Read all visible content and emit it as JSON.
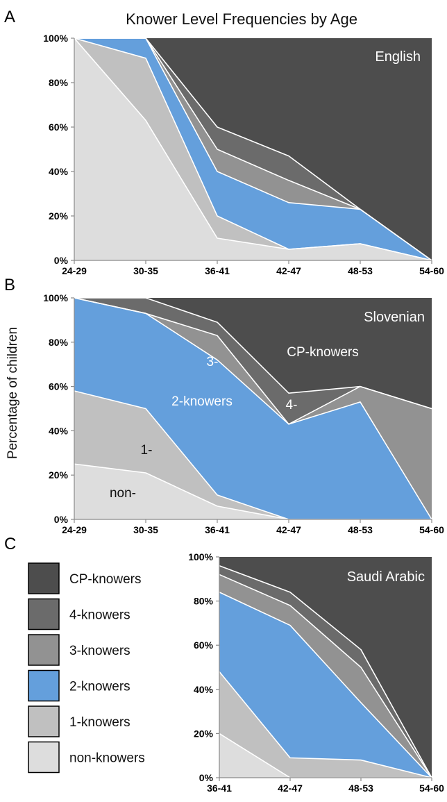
{
  "figure": {
    "title": "Knower Level Frequencies by Age",
    "ylabel": "Percentage of children",
    "colors": {
      "non": "#dddddd",
      "one": "#c0c0c0",
      "two": "#649fdc",
      "three": "#929292",
      "four": "#6b6b6b",
      "cp": "#4d4d4d"
    }
  },
  "legend": {
    "items": [
      {
        "key": "cp",
        "label": "CP-knowers"
      },
      {
        "key": "four",
        "label": "4-knowers"
      },
      {
        "key": "three",
        "label": "3-knowers"
      },
      {
        "key": "two",
        "label": "2-knowers"
      },
      {
        "key": "one",
        "label": "1-knowers"
      },
      {
        "key": "non",
        "label": "non-knowers"
      }
    ]
  },
  "chart_data": [
    {
      "type": "area",
      "stacked": true,
      "panel": "A",
      "title": "Knower Level Frequencies by Age",
      "language": "English",
      "categories": [
        "24-29",
        "30-35",
        "36-41",
        "42-47",
        "48-53",
        "54-60"
      ],
      "ylim": [
        0,
        100
      ],
      "yticks": [
        "0%",
        "20%",
        "40%",
        "60%",
        "80%",
        "100%"
      ],
      "series": [
        {
          "key": "non",
          "values": [
            100,
            63,
            10,
            5,
            7.5,
            0
          ]
        },
        {
          "key": "one",
          "values": [
            0,
            28,
            10,
            0,
            0,
            0
          ]
        },
        {
          "key": "two",
          "values": [
            0,
            9,
            20,
            21,
            15.5,
            0
          ]
        },
        {
          "key": "three",
          "values": [
            0,
            0,
            10,
            10,
            0,
            0
          ]
        },
        {
          "key": "four",
          "values": [
            0,
            0,
            10,
            11,
            0,
            0
          ]
        },
        {
          "key": "cp",
          "values": [
            0,
            0,
            40,
            53,
            77,
            100
          ]
        }
      ]
    },
    {
      "type": "area",
      "stacked": true,
      "panel": "B",
      "language": "Slovenian",
      "categories": [
        "24-29",
        "30-35",
        "36-41",
        "42-47",
        "48-53",
        "54-60"
      ],
      "ylim": [
        0,
        100
      ],
      "yticks": [
        "0%",
        "20%",
        "40%",
        "60%",
        "80%",
        "100%"
      ],
      "annotations": [
        "CP-knowers",
        "2-knowers",
        "3-",
        "4-",
        "1-",
        "non-"
      ],
      "series": [
        {
          "key": "non",
          "values": [
            25,
            21,
            6,
            0,
            0,
            0
          ]
        },
        {
          "key": "one",
          "values": [
            33,
            29,
            5,
            0,
            0,
            0
          ]
        },
        {
          "key": "two",
          "values": [
            42,
            43,
            61,
            43,
            53,
            0
          ]
        },
        {
          "key": "three",
          "values": [
            0,
            0,
            11,
            0,
            7,
            50
          ]
        },
        {
          "key": "four",
          "values": [
            0,
            7,
            6,
            14,
            0,
            0
          ]
        },
        {
          "key": "cp",
          "values": [
            0,
            0,
            11,
            43,
            40,
            50
          ]
        }
      ]
    },
    {
      "type": "area",
      "stacked": true,
      "panel": "C",
      "language": "Saudi Arabic",
      "categories": [
        "36-41",
        "42-47",
        "48-53",
        "54-60"
      ],
      "ylim": [
        0,
        100
      ],
      "yticks": [
        "0%",
        "20%",
        "40%",
        "60%",
        "80%",
        "100%"
      ],
      "series": [
        {
          "key": "non",
          "values": [
            20,
            0,
            0,
            0
          ]
        },
        {
          "key": "one",
          "values": [
            28,
            9,
            8,
            0
          ]
        },
        {
          "key": "two",
          "values": [
            36,
            60,
            26,
            0
          ]
        },
        {
          "key": "three",
          "values": [
            8,
            9,
            16,
            0
          ]
        },
        {
          "key": "four",
          "values": [
            4,
            6,
            8,
            0
          ]
        },
        {
          "key": "cp",
          "values": [
            4,
            16,
            42,
            100
          ]
        }
      ]
    }
  ]
}
